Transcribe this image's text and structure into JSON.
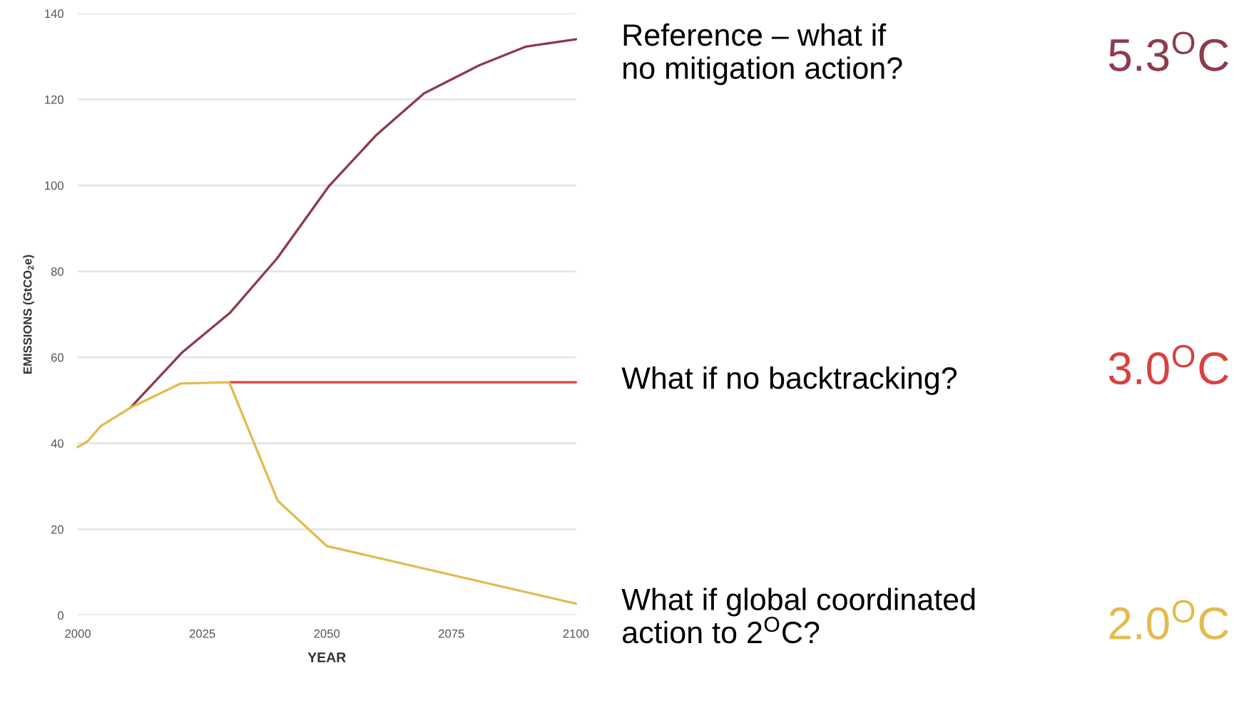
{
  "chart_data": {
    "type": "line",
    "xlabel": "YEAR",
    "ylabel": "EMISSIONS (GtCO$_{2}$e)",
    "xlim": [
      2000,
      2100
    ],
    "xticks": [
      2000,
      2025,
      2050,
      2075,
      2100
    ],
    "ylim": [
      0,
      140
    ],
    "yticks": [
      0,
      20,
      40,
      60,
      80,
      100,
      120,
      140
    ],
    "grid": "y",
    "legend": false,
    "marker": "none",
    "line_style": "solid",
    "series": [
      {
        "name": "Reference – what if\nno mitigation action?",
        "color": "#8e3b4c",
        "x": [
          2010.6,
          2021,
          2030.5,
          2040,
          2050.4,
          2060,
          2069.5,
          2080.7,
          2090,
          2100
        ],
        "values": [
          48.3,
          61.2,
          70.3,
          83,
          99.8,
          111.8,
          121.4,
          128,
          132.3,
          134
        ]
      },
      {
        "name": "What if no backtracking?",
        "color": "#d9413f",
        "x": [
          2030.4,
          2100
        ],
        "values": [
          54.2,
          54.2
        ]
      },
      {
        "name": "What if global coordinated\naction to 2$^{O}$C?",
        "color": "#e3bb4f",
        "x": [
          2000,
          2002,
          2004.6,
          2010.6,
          2020.6,
          2030.4,
          2040.1,
          2050,
          2100
        ],
        "values": [
          39.1,
          40.5,
          44,
          48.3,
          53.9,
          54.2,
          26.7,
          16.1,
          2.7
        ]
      }
    ],
    "annotations": [
      "5.3$^{O}$C",
      "3.0$^{O}$C",
      "2.0$^{O}$C"
    ]
  }
}
